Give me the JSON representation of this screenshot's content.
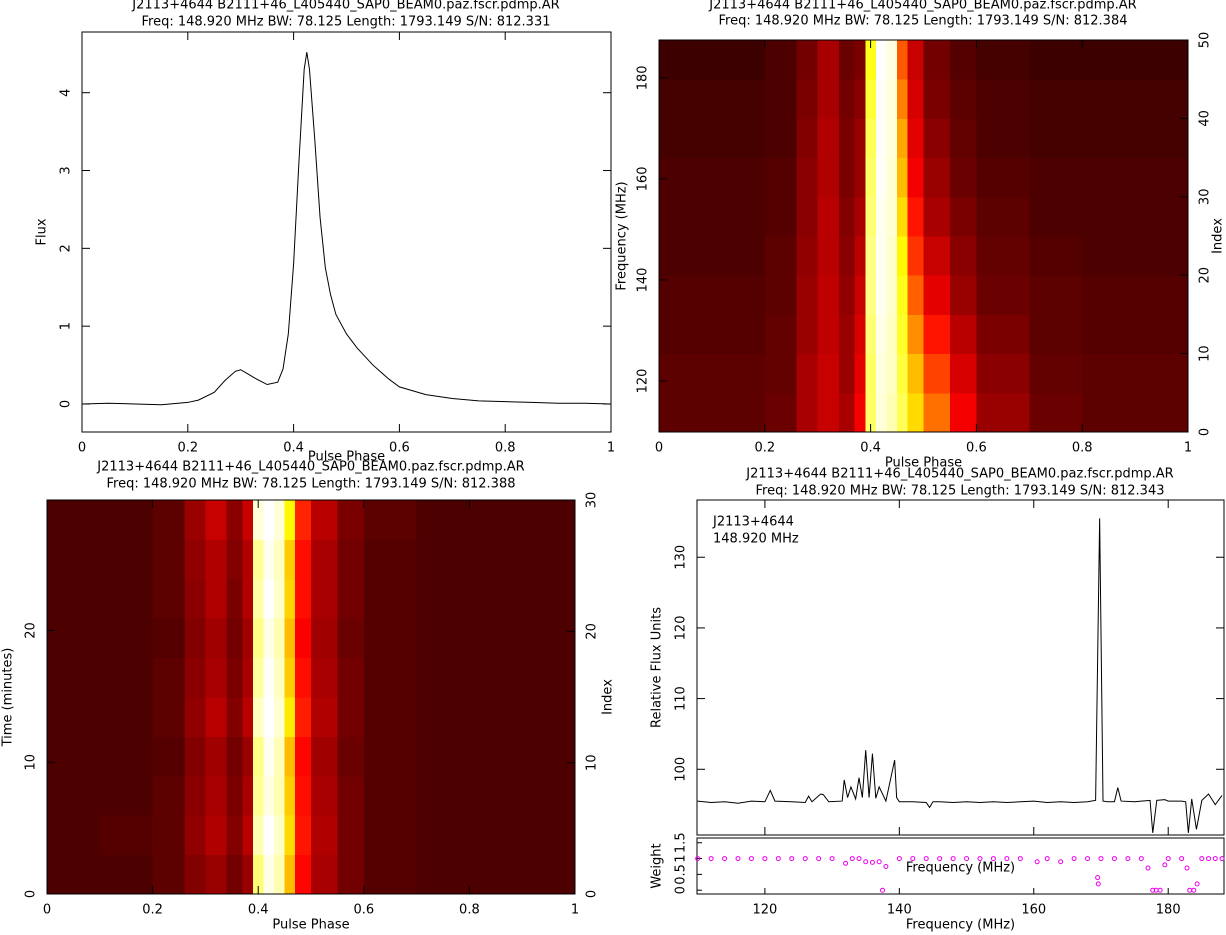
{
  "chart_data": [
    {
      "type": "line",
      "title": "J2113+4644  B2111+46_L405440_SAP0_BEAM0.paz.fscr.pdmp.AR",
      "subtitle": "Freq: 148.920 MHz BW: 78.125 Length: 1793.149 S/N: 812.331",
      "xlabel": "Pulse Phase",
      "ylabel": "Flux",
      "color": "#000000",
      "xlim": [
        0,
        1
      ],
      "xticks": [
        0,
        0.2,
        0.4,
        0.6,
        0.8,
        1
      ],
      "ylim": [
        -0.36,
        4.78
      ],
      "yticks": [
        0,
        1,
        2,
        3,
        4
      ],
      "x": [
        0,
        0.05,
        0.1,
        0.15,
        0.2,
        0.22,
        0.25,
        0.27,
        0.29,
        0.3,
        0.31,
        0.33,
        0.35,
        0.37,
        0.38,
        0.39,
        0.4,
        0.41,
        0.42,
        0.425,
        0.43,
        0.44,
        0.45,
        0.46,
        0.47,
        0.48,
        0.5,
        0.52,
        0.55,
        0.58,
        0.6,
        0.65,
        0.7,
        0.75,
        0.8,
        0.85,
        0.9,
        0.95,
        1
      ],
      "values": [
        0.0,
        0.01,
        0.0,
        -0.01,
        0.02,
        0.05,
        0.15,
        0.3,
        0.42,
        0.44,
        0.4,
        0.32,
        0.25,
        0.28,
        0.45,
        0.9,
        1.8,
        3.1,
        4.3,
        4.52,
        4.3,
        3.4,
        2.4,
        1.75,
        1.4,
        1.15,
        0.9,
        0.72,
        0.5,
        0.32,
        0.22,
        0.12,
        0.07,
        0.04,
        0.03,
        0.02,
        0.01,
        0.01,
        0.0
      ]
    },
    {
      "type": "heatmap",
      "title": "J2113+4644  B2111+46_L405440_SAP0_BEAM0.paz.fscr.pdmp.AR",
      "subtitle": "Freq: 148.920 MHz BW: 78.125 Length: 1793.149 S/N: 812.384",
      "xlabel": "Pulse Phase",
      "ylabel": "Frequency (MHz)",
      "y2label": "Index",
      "colormap": "hot",
      "xlim": [
        0,
        1
      ],
      "xticks": [
        0,
        0.2,
        0.4,
        0.6,
        0.8,
        1
      ],
      "ylim": [
        109.9,
        187.5
      ],
      "yticks": [
        120,
        140,
        160,
        180
      ],
      "y2lim": [
        0,
        50
      ],
      "y2ticks": [
        0,
        10,
        20,
        30,
        40,
        50
      ],
      "xbins": [
        0,
        0.1,
        0.2,
        0.26,
        0.3,
        0.34,
        0.37,
        0.39,
        0.41,
        0.43,
        0.45,
        0.47,
        0.5,
        0.55,
        0.6,
        0.7,
        0.8,
        0.9,
        1
      ],
      "ybins": [
        0,
        5,
        10,
        15,
        20,
        25,
        30,
        35,
        40,
        45,
        50
      ],
      "z": [
        [
          0.12,
          0.12,
          0.14,
          0.22,
          0.26,
          0.22,
          0.32,
          0.8,
          0.95,
          0.9,
          0.78,
          0.62,
          0.48,
          0.32,
          0.2,
          0.14,
          0.12,
          0.12
        ],
        [
          0.12,
          0.12,
          0.13,
          0.22,
          0.26,
          0.2,
          0.3,
          0.8,
          0.96,
          0.92,
          0.75,
          0.58,
          0.42,
          0.28,
          0.18,
          0.13,
          0.12,
          0.12
        ],
        [
          0.11,
          0.11,
          0.13,
          0.2,
          0.25,
          0.2,
          0.28,
          0.82,
          0.97,
          0.92,
          0.72,
          0.52,
          0.36,
          0.24,
          0.16,
          0.12,
          0.11,
          0.11
        ],
        [
          0.11,
          0.11,
          0.12,
          0.2,
          0.25,
          0.19,
          0.26,
          0.84,
          0.98,
          0.93,
          0.7,
          0.46,
          0.3,
          0.2,
          0.14,
          0.12,
          0.11,
          0.11
        ],
        [
          0.1,
          0.1,
          0.12,
          0.19,
          0.24,
          0.18,
          0.24,
          0.84,
          0.98,
          0.93,
          0.66,
          0.4,
          0.26,
          0.18,
          0.13,
          0.11,
          0.1,
          0.1
        ],
        [
          0.1,
          0.1,
          0.11,
          0.18,
          0.24,
          0.17,
          0.22,
          0.82,
          0.98,
          0.94,
          0.62,
          0.36,
          0.22,
          0.16,
          0.12,
          0.1,
          0.1,
          0.1
        ],
        [
          0.1,
          0.1,
          0.11,
          0.18,
          0.23,
          0.16,
          0.2,
          0.8,
          0.99,
          0.94,
          0.58,
          0.32,
          0.2,
          0.14,
          0.11,
          0.1,
          0.1,
          0.1
        ],
        [
          0.09,
          0.09,
          0.1,
          0.17,
          0.23,
          0.16,
          0.2,
          0.78,
          0.99,
          0.95,
          0.55,
          0.3,
          0.18,
          0.13,
          0.1,
          0.09,
          0.09,
          0.09
        ],
        [
          0.09,
          0.09,
          0.1,
          0.16,
          0.22,
          0.15,
          0.18,
          0.74,
          0.99,
          0.95,
          0.5,
          0.28,
          0.16,
          0.12,
          0.1,
          0.09,
          0.09,
          0.09
        ],
        [
          0.08,
          0.08,
          0.1,
          0.15,
          0.22,
          0.14,
          0.16,
          0.7,
          1.0,
          0.96,
          0.45,
          0.26,
          0.15,
          0.11,
          0.09,
          0.08,
          0.08,
          0.08
        ]
      ]
    },
    {
      "type": "heatmap",
      "title": "J2113+4644  B2111+46_L405440_SAP0_BEAM0.paz.fscr.pdmp.AR",
      "subtitle": "Freq: 148.920 MHz BW: 78.125 Length: 1793.149 S/N: 812.388",
      "xlabel": "Pulse Phase",
      "ylabel": "Time (minutes)",
      "y2label": "Index",
      "colormap": "hot",
      "xlim": [
        0,
        1
      ],
      "xticks": [
        0,
        0.2,
        0.4,
        0.6,
        0.8,
        1
      ],
      "ylim": [
        0,
        29.9
      ],
      "yticks": [
        0,
        10,
        20
      ],
      "y2lim": [
        0,
        30
      ],
      "y2ticks": [
        0,
        10,
        20,
        30
      ],
      "xbins": [
        0,
        0.1,
        0.2,
        0.26,
        0.3,
        0.34,
        0.37,
        0.39,
        0.41,
        0.43,
        0.45,
        0.47,
        0.5,
        0.55,
        0.6,
        0.7,
        0.8,
        0.9,
        1
      ],
      "ybins": [
        0,
        3,
        6,
        9,
        12,
        15,
        18,
        21,
        24,
        27,
        30
      ],
      "z": [
        [
          0.1,
          0.1,
          0.12,
          0.17,
          0.2,
          0.15,
          0.2,
          0.82,
          0.97,
          0.9,
          0.58,
          0.34,
          0.22,
          0.15,
          0.11,
          0.1,
          0.1,
          0.1
        ],
        [
          0.1,
          0.11,
          0.12,
          0.19,
          0.23,
          0.17,
          0.24,
          0.9,
          1.0,
          0.93,
          0.62,
          0.36,
          0.23,
          0.15,
          0.11,
          0.1,
          0.1,
          0.1
        ],
        [
          0.1,
          0.1,
          0.12,
          0.18,
          0.22,
          0.16,
          0.22,
          0.86,
          0.96,
          0.9,
          0.6,
          0.35,
          0.22,
          0.15,
          0.11,
          0.1,
          0.1,
          0.1
        ],
        [
          0.1,
          0.1,
          0.11,
          0.17,
          0.21,
          0.15,
          0.2,
          0.84,
          0.98,
          0.91,
          0.58,
          0.34,
          0.21,
          0.14,
          0.11,
          0.1,
          0.1,
          0.1
        ],
        [
          0.1,
          0.1,
          0.12,
          0.19,
          0.24,
          0.17,
          0.24,
          0.92,
          1.0,
          0.94,
          0.64,
          0.37,
          0.23,
          0.15,
          0.11,
          0.1,
          0.1,
          0.1
        ],
        [
          0.1,
          0.1,
          0.12,
          0.18,
          0.22,
          0.16,
          0.22,
          0.87,
          0.99,
          0.92,
          0.6,
          0.35,
          0.22,
          0.15,
          0.11,
          0.1,
          0.1,
          0.1
        ],
        [
          0.1,
          0.1,
          0.11,
          0.17,
          0.21,
          0.15,
          0.21,
          0.84,
          0.97,
          0.9,
          0.58,
          0.33,
          0.21,
          0.14,
          0.11,
          0.1,
          0.1,
          0.1
        ],
        [
          0.1,
          0.1,
          0.12,
          0.18,
          0.23,
          0.16,
          0.23,
          0.88,
          1.0,
          0.93,
          0.61,
          0.35,
          0.22,
          0.15,
          0.11,
          0.1,
          0.1,
          0.1
        ],
        [
          0.1,
          0.1,
          0.12,
          0.19,
          0.23,
          0.17,
          0.23,
          0.86,
          0.98,
          0.92,
          0.6,
          0.35,
          0.22,
          0.15,
          0.11,
          0.1,
          0.1,
          0.1
        ],
        [
          0.1,
          0.1,
          0.12,
          0.2,
          0.26,
          0.18,
          0.26,
          0.95,
          1.0,
          0.95,
          0.66,
          0.38,
          0.24,
          0.16,
          0.12,
          0.1,
          0.1,
          0.1
        ]
      ]
    },
    {
      "type": "line",
      "title": "J2113+4644  B2111+46_L405440_SAP0_BEAM0.paz.fscr.pdmp.AR",
      "subtitle": "Freq: 148.920 MHz BW: 78.125 Length: 1793.149 S/N: 812.343",
      "annotations": [
        "J2113+4644",
        "148.920 MHz"
      ],
      "xlabel": "Frequency (MHz)",
      "ylabel": "Relative Flux Units",
      "color": "#000000",
      "xlim": [
        109.9,
        188.3
      ],
      "xticks": [
        120,
        140,
        160,
        180
      ],
      "ylim": [
        90.7,
        138.1
      ],
      "yticks": [
        100,
        110,
        120,
        130
      ],
      "x": [
        110,
        112,
        114,
        116,
        118,
        120,
        120.8,
        121.5,
        124,
        126,
        126.5,
        127,
        128.3,
        128.7,
        129.5,
        131.5,
        131.8,
        132.3,
        132.8,
        133.5,
        134,
        134.5,
        135,
        135.5,
        136,
        136.5,
        137,
        138,
        139.3,
        139.6,
        140,
        142,
        144,
        144.5,
        145,
        146,
        148,
        150,
        152,
        154,
        156,
        158,
        160,
        162,
        164,
        166,
        168,
        169.2,
        169.8,
        170.3,
        171,
        172,
        172.5,
        173,
        175,
        177.3,
        177.7,
        178.3,
        179.5,
        180,
        182,
        182.6,
        183,
        183.5,
        184.2,
        185,
        186,
        187,
        188
      ],
      "values": [
        95.5,
        95.3,
        95.4,
        95.2,
        95.5,
        95.4,
        97.0,
        95.5,
        95.4,
        95.3,
        96.2,
        95.4,
        96.5,
        96.4,
        95.4,
        95.5,
        98.5,
        96,
        97.5,
        95.8,
        98.8,
        96,
        102.7,
        96,
        102.2,
        95.9,
        97.5,
        95.5,
        101.3,
        96,
        95.4,
        95.4,
        95.3,
        94.6,
        95.4,
        95.4,
        95.3,
        95.4,
        95.3,
        95.4,
        95.3,
        95.4,
        95.5,
        95.3,
        95.4,
        95.3,
        95.4,
        95.6,
        135.5,
        95.5,
        95.4,
        95.4,
        97.4,
        95.5,
        95.4,
        95.6,
        91,
        95.6,
        95.7,
        95.5,
        95.5,
        95.4,
        91,
        95.8,
        91.5,
        95.6,
        96.5,
        95,
        96.3
      ],
      "weights": {
        "type": "scatter",
        "ylabel": "Weight",
        "xlabel": "Frequency (MHz)",
        "color": "#ee00ee",
        "ylim": [
          -0.12,
          1.65
        ],
        "yticks": [
          0,
          0.5,
          1,
          1.5
        ],
        "x": [
          110,
          112,
          114,
          116,
          118,
          120,
          122,
          124,
          126,
          128,
          130,
          132,
          133,
          134,
          135,
          136,
          137,
          137.5,
          138,
          140,
          142,
          144,
          146,
          148,
          150,
          152,
          154,
          156,
          158,
          160.5,
          162,
          164,
          166,
          168,
          169.5,
          169.6,
          170,
          172,
          174,
          176,
          177,
          177.7,
          178.2,
          178.8,
          179.5,
          180,
          182,
          182.8,
          183.2,
          183.8,
          184.3,
          185,
          186,
          187,
          188
        ],
        "values": [
          1,
          1,
          1,
          1,
          1,
          1,
          1,
          1,
          1,
          1,
          1,
          0.85,
          1,
          1,
          0.9,
          0.88,
          0.9,
          0,
          0.75,
          1,
          1,
          1,
          1,
          1,
          1,
          1,
          1,
          1,
          1,
          0.9,
          1,
          0.9,
          1,
          1,
          0.4,
          0.2,
          1,
          1,
          1,
          1,
          0.7,
          0,
          0,
          0,
          0.8,
          1,
          1,
          0.7,
          0,
          0,
          0.2,
          1,
          1,
          1,
          1
        ]
      }
    }
  ]
}
